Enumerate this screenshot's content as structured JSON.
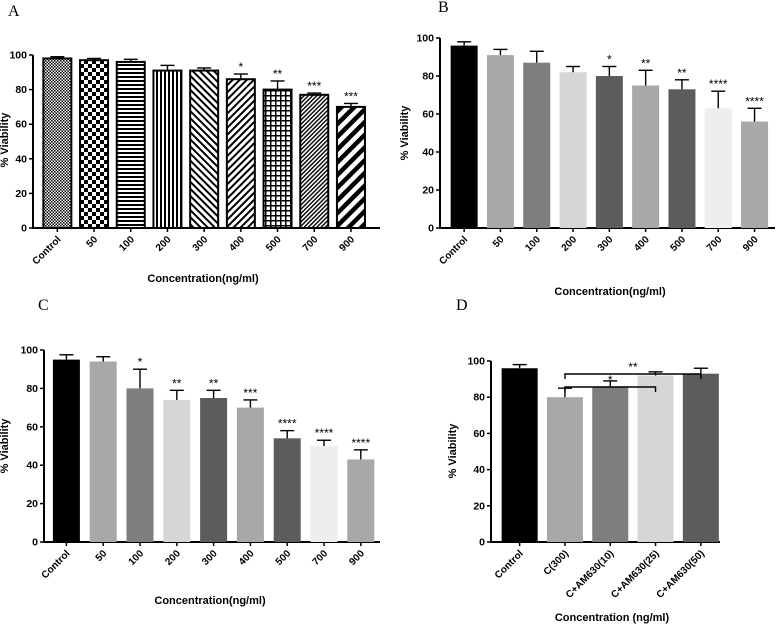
{
  "chart_data": [
    {
      "panel_label": "A",
      "type": "bar",
      "xlabel": "Concentration(ng/ml)",
      "ylabel": "% Viability",
      "ylim": [
        0,
        100
      ],
      "yticks": [
        0,
        20,
        40,
        60,
        80,
        100
      ],
      "categories": [
        "Control",
        "50",
        "100",
        "200",
        "300",
        "400",
        "500",
        "700",
        "900"
      ],
      "values": [
        98,
        97,
        96,
        91,
        91,
        86,
        80,
        77,
        70
      ],
      "errors": [
        1,
        1,
        1.5,
        3,
        1.5,
        3,
        5,
        1,
        2
      ],
      "significance": [
        "",
        "",
        "",
        "",
        "",
        "*",
        "**",
        "***",
        "***"
      ],
      "bar_fills": [
        "pat-fine-check",
        "pat-checker",
        "pat-hlines",
        "pat-vlines",
        "pat-fwd-diag",
        "pat-back-diag",
        "pat-grid",
        "pat-dense-back",
        "pat-wide-back"
      ]
    },
    {
      "panel_label": "B",
      "type": "bar",
      "xlabel": "Concentration(ng/ml)",
      "ylabel": "% Viability",
      "ylim": [
        0,
        100
      ],
      "yticks": [
        0,
        20,
        40,
        60,
        80,
        100
      ],
      "categories": [
        "Control",
        "50",
        "100",
        "200",
        "300",
        "400",
        "500",
        "700",
        "900"
      ],
      "values": [
        96,
        91,
        87,
        82,
        80,
        75,
        73,
        63,
        56
      ],
      "errors": [
        2,
        3,
        6,
        3,
        5,
        8,
        5,
        9,
        7
      ],
      "significance": [
        "",
        "",
        "",
        "",
        "*",
        "**",
        "**",
        "****",
        "****"
      ],
      "bar_fills": [
        "#000000",
        "#a8a8aa",
        "#7e7e80",
        "#d6d6d6",
        "#5c5c5e",
        "#a8a8aa",
        "#5c5c5e",
        "#eeeeee",
        "#a8a8aa"
      ]
    },
    {
      "panel_label": "C",
      "type": "bar",
      "xlabel": "Concentration(ng/ml)",
      "ylabel": "% Viability",
      "ylim": [
        0,
        100
      ],
      "yticks": [
        0,
        20,
        40,
        60,
        80,
        100
      ],
      "categories": [
        "Control",
        "50",
        "100",
        "200",
        "300",
        "400",
        "500",
        "700",
        "900"
      ],
      "values": [
        95,
        94,
        80,
        74,
        75,
        70,
        54,
        50,
        43
      ],
      "errors": [
        2.5,
        2.5,
        10,
        5,
        4,
        4,
        4,
        3,
        5
      ],
      "significance": [
        "",
        "",
        "*",
        "**",
        "**",
        "***",
        "****",
        "****",
        "****"
      ],
      "bar_fills": [
        "#000000",
        "#a8a8aa",
        "#7e7e80",
        "#d6d6d6",
        "#5c5c5e",
        "#a8a8aa",
        "#5c5c5e",
        "#eeeeee",
        "#a8a8aa"
      ]
    },
    {
      "panel_label": "D",
      "type": "bar",
      "xlabel": "Concentration (ng/ml)",
      "ylabel": "% Viability",
      "ylim": [
        0,
        100
      ],
      "yticks": [
        0,
        20,
        40,
        60,
        80,
        100
      ],
      "categories": [
        "Control",
        "C(300)",
        "C+AM630(10)",
        "C+AM630(25)",
        "C+AM630(50)"
      ],
      "values": [
        96,
        80,
        86,
        92,
        93
      ],
      "errors": [
        2,
        5,
        3,
        2,
        3
      ],
      "significance": [
        "",
        "",
        "",
        "",
        ""
      ],
      "bar_fills": [
        "#000000",
        "#a8a8aa",
        "#7e7e80",
        "#d6d6d6",
        "#5c5c5e"
      ],
      "comparisons": [
        {
          "from": 1,
          "to": 3,
          "label": "*"
        },
        {
          "from": 1,
          "to": 4,
          "label": "**"
        }
      ]
    }
  ]
}
